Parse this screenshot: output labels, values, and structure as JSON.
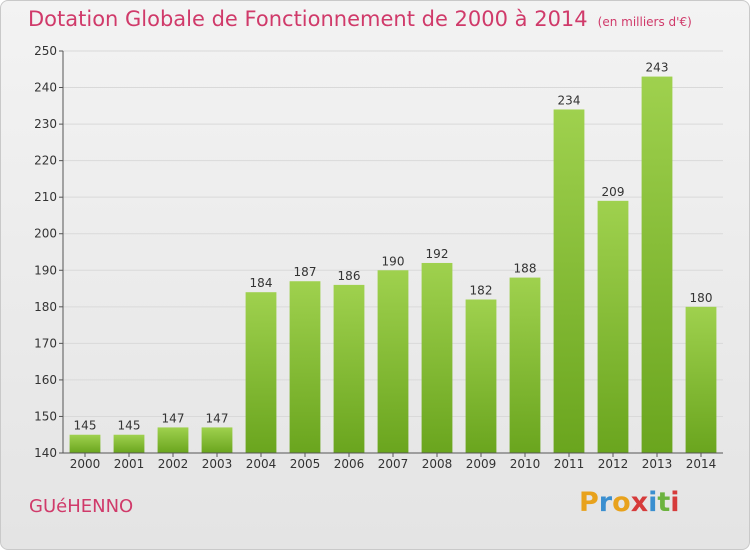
{
  "header": {
    "title": "Dotation Globale de Fonctionnement de 2000 à 2014",
    "subtitle": "(en milliers d'€)"
  },
  "footer": {
    "place": "GUéHENNO",
    "logo_letters": [
      "P",
      "r",
      "o",
      "x",
      "i",
      "t",
      "i"
    ],
    "logo_colors": [
      "#e8a21c",
      "#3a8fd0",
      "#e8a21c",
      "#d63b3b",
      "#3a8fd0",
      "#6cb33f",
      "#d63b3b"
    ]
  },
  "chart_data": {
    "type": "bar",
    "title": "Dotation Globale de Fonctionnement de 2000 à 2014",
    "subtitle": "(en milliers d'€)",
    "xlabel": "",
    "ylabel": "",
    "categories": [
      "2000",
      "2001",
      "2002",
      "2003",
      "2004",
      "2005",
      "2006",
      "2007",
      "2008",
      "2009",
      "2010",
      "2011",
      "2012",
      "2013",
      "2014"
    ],
    "values": [
      145,
      145,
      147,
      147,
      184,
      187,
      186,
      190,
      192,
      182,
      188,
      234,
      209,
      243,
      180
    ],
    "ylim": [
      140,
      250
    ],
    "yticks": [
      140,
      150,
      160,
      170,
      180,
      190,
      200,
      210,
      220,
      230,
      240,
      250
    ],
    "grid": true,
    "bar_color_top": "#9fd14e",
    "bar_color_bottom": "#6aa51e",
    "label_color": "#333333"
  }
}
